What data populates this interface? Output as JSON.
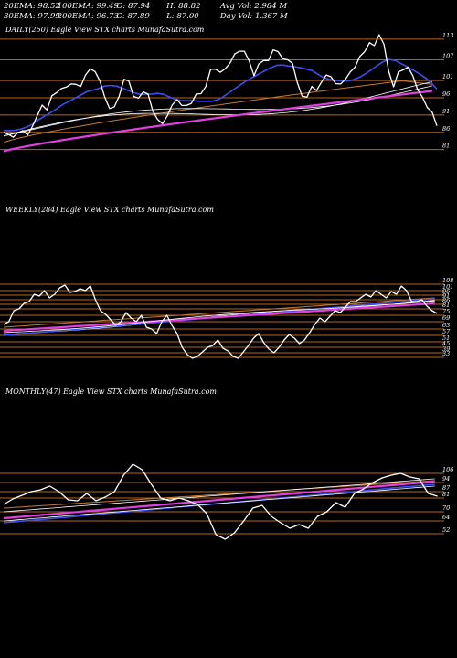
{
  "header": {
    "row1": [
      {
        "key": "ema20",
        "text": "20EMA: 98.52"
      },
      {
        "key": "ema100",
        "text": "100EMA: 99.49"
      },
      {
        "key": "open",
        "text": "O: 87.94"
      },
      {
        "key": "high",
        "text": "H: 88.82"
      },
      {
        "key": "avgvol",
        "text": "Avg Vol: 2.984  M"
      }
    ],
    "row2": [
      {
        "key": "ema30",
        "text": "30EMA: 97.99"
      },
      {
        "key": "ema200",
        "text": "200EMA: 96.73"
      },
      {
        "key": "close",
        "text": "C: 87.89"
      },
      {
        "key": "low",
        "text": "L: 87.00"
      },
      {
        "key": "dayvol",
        "text": "Day Vol: 1.367  M"
      }
    ]
  },
  "panels": {
    "daily": {
      "label": "DAILY(250) Eagle  View  STX  charts MunafaSutra.com"
    },
    "weekly": {
      "label": "WEEKLY(284) Eagle  View  STX  charts MunafaSutra.com"
    },
    "monthly": {
      "label": "MONTHLY(47) Eagle  View  STX  charts MunafaSutra.com"
    }
  },
  "colors": {
    "price": "#ffffff",
    "ema_fast": "#3a4ff0",
    "ema_200": "#e040e0",
    "ema_other": "#ffffff",
    "ema_brown": "#c87832",
    "levels": "#b4641e",
    "background": "#000000"
  },
  "chart_data": [
    {
      "type": "line",
      "name": "daily",
      "ylim": [
        78,
        118
      ],
      "y_ticks": [
        113,
        107,
        101,
        96,
        91,
        86,
        81
      ],
      "levels": [
        113,
        107,
        101,
        96,
        91,
        86,
        81
      ],
      "price": [
        86.0,
        85.4,
        84.6,
        85.9,
        86.5,
        85.2,
        87.8,
        90.9,
        93.9,
        92.5,
        96.6,
        97.5,
        98.7,
        99.1,
        100.0,
        99.9,
        99.3,
        102.6,
        104.4,
        103.6,
        100.9,
        96.2,
        92.9,
        93.4,
        96.5,
        101.4,
        100.9,
        96.4,
        95.9,
        97.7,
        97.1,
        92.1,
        89.7,
        88.5,
        90.8,
        93.9,
        95.5,
        93.8,
        93.8,
        94.4,
        97.1,
        97.2,
        99.3,
        104.3,
        104.3,
        103.4,
        104.4,
        106.0,
        108.7,
        109.5,
        109.5,
        106.7,
        102.4,
        105.8,
        106.8,
        106.8,
        109.9,
        109.4,
        107.3,
        107.0,
        106.0,
        100.4,
        96.5,
        96.2,
        99.3,
        98.1,
        100.5,
        102.6,
        102.1,
        100.1,
        100.0,
        101.4,
        103.5,
        104.9,
        108.0,
        109.4,
        112.0,
        111.1,
        114.3,
        111.5,
        103.7,
        99.2,
        103.5,
        104.1,
        104.9,
        102.4,
        98.4,
        96.2,
        93.2,
        91.9,
        87.89
      ],
      "ema20": [
        86.5,
        86.5,
        86.6,
        87.0,
        87.6,
        88.5,
        89.8,
        90.8,
        91.8,
        92.9,
        94.1,
        94.9,
        95.9,
        96.8,
        97.8,
        98.2,
        98.7,
        99.4,
        99.6,
        99.4,
        98.8,
        98.1,
        97.5,
        97.0,
        97.0,
        97.1,
        97.3,
        97.0,
        96.2,
        95.5,
        95.2,
        95.2,
        95.2,
        95.0,
        95.0,
        95.0,
        95.4,
        96.3,
        97.5,
        98.7,
        99.9,
        101.0,
        102.0,
        102.9,
        103.8,
        104.7,
        105.4,
        105.5,
        105.2,
        105.0,
        104.7,
        104.3,
        103.9,
        102.8,
        101.8,
        101.3,
        101.1,
        100.9,
        100.9,
        101.3,
        102.0,
        103.0,
        104.2,
        105.4,
        106.5,
        107.1,
        106.8,
        105.9,
        105.0,
        104.0,
        103.0,
        101.9,
        100.5,
        98.52
      ]
    },
    {
      "type": "line",
      "name": "weekly",
      "y_ticks": [
        108,
        101,
        96,
        91,
        86,
        81,
        75,
        69,
        63,
        57,
        51,
        45,
        39,
        33
      ],
      "levels": [
        108,
        101,
        96,
        91,
        86,
        81,
        75,
        69,
        63,
        57,
        51,
        45,
        39,
        33
      ]
    },
    {
      "type": "line",
      "name": "monthly",
      "y_ticks": [
        106,
        94,
        87,
        81,
        70,
        64,
        52
      ],
      "levels": [
        106,
        94,
        87,
        81,
        70,
        64,
        52
      ]
    }
  ]
}
